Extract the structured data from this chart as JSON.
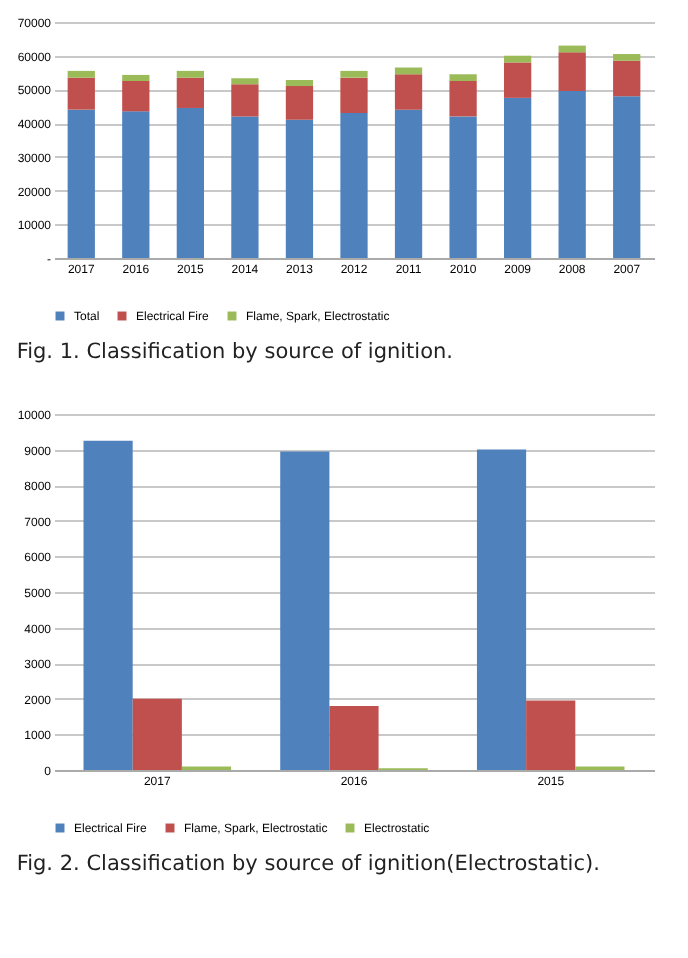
{
  "chart_data": [
    {
      "type": "bar",
      "stacked": true,
      "categories": [
        "2017",
        "2016",
        "2015",
        "2014",
        "2013",
        "2012",
        "2011",
        "2010",
        "2009",
        "2008",
        "2007"
      ],
      "series": [
        {
          "name": "Total",
          "color": "#4f81bd",
          "values": [
            44000,
            43500,
            44500,
            42000,
            41000,
            43000,
            44000,
            42000,
            47500,
            49500,
            48000
          ]
        },
        {
          "name": "Electrical Fire",
          "color": "#c0504d",
          "values": [
            9500,
            9000,
            9000,
            9500,
            10000,
            10500,
            10500,
            10500,
            10500,
            11500,
            10500
          ]
        },
        {
          "name": "Flame, Spark, Electrostatic",
          "color": "#9bbb59",
          "values": [
            2000,
            1800,
            2000,
            1800,
            1800,
            2000,
            2000,
            2000,
            2000,
            2000,
            2000
          ]
        }
      ],
      "ylim": [
        0,
        70000
      ],
      "yticks": [
        {
          "value": 0,
          "label": "-"
        },
        10000,
        20000,
        30000,
        40000,
        50000,
        60000,
        70000
      ],
      "grid": "y",
      "legend": "bottom",
      "annotations": [
        "Fig. 1. Classification by source of ignition."
      ]
    },
    {
      "type": "bar",
      "categories": [
        "2017",
        "2016",
        "2015"
      ],
      "series": [
        {
          "name": "Electrical Fire",
          "color": "#4f81bd",
          "values": [
            9250,
            8950,
            9000
          ]
        },
        {
          "name": "Flame, Spark, Electrostatic",
          "color": "#c0504d",
          "values": [
            2000,
            1800,
            1950
          ]
        },
        {
          "name": "Electrostatic",
          "color": "#9bbb59",
          "values": [
            100,
            50,
            100
          ]
        }
      ],
      "ylim": [
        0,
        10000
      ],
      "yticks": [
        0,
        1000,
        2000,
        3000,
        4000,
        5000,
        6000,
        7000,
        8000,
        9000,
        10000
      ],
      "grid": "y",
      "legend": "bottom",
      "annotations": [
        "Fig. 2. Classification by source of ignition(Electrostatic)."
      ]
    }
  ]
}
